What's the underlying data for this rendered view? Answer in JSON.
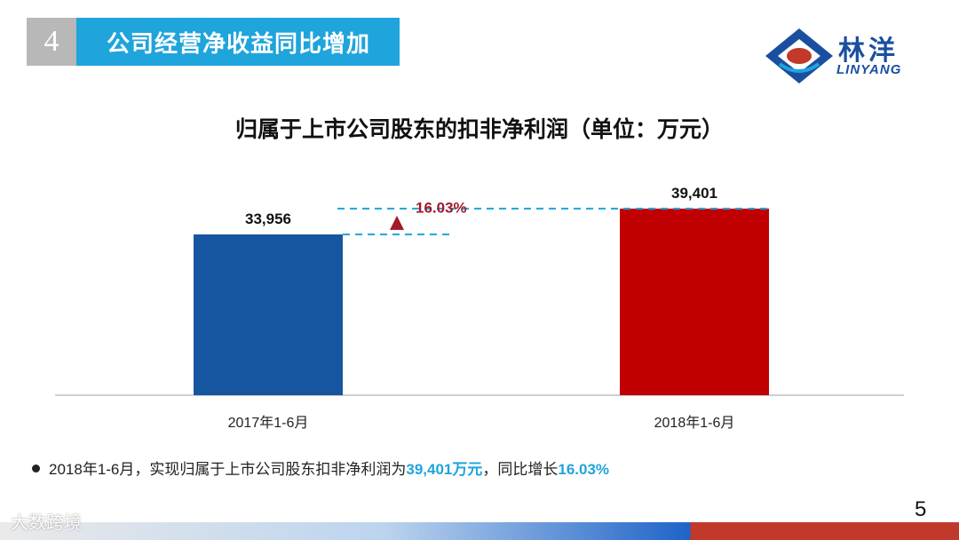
{
  "header": {
    "section_number": "4",
    "section_title": "公司经营净收益同比增加"
  },
  "logo": {
    "name_cn": "林洋",
    "name_en": "LINYANG",
    "colors": {
      "primary": "#1a4fa0",
      "accent": "#1fa4dc",
      "mark": "#c0392b"
    }
  },
  "chart_data": {
    "type": "bar",
    "title": "归属于上市公司股东的扣非净利润（单位：万元）",
    "categories": [
      "2017年1-6月",
      "2018年1-6月"
    ],
    "values": [
      33956,
      39401
    ],
    "value_labels": [
      "33,956",
      "39,401"
    ],
    "bar_colors": [
      "#1656a0",
      "#c00000"
    ],
    "growth_label": "16.03%",
    "growth_color": "#a31a2a",
    "guide_color": "#1fa4dc",
    "ylim": [
      0,
      45000
    ],
    "grid": false,
    "xlabel": "",
    "ylabel": ""
  },
  "summary": {
    "prefix": "2018年1-6月，实现归属于上市公司股东扣非净利润为",
    "amount": "39,401万元",
    "mid": "，同比增长",
    "growth": "16.03%"
  },
  "page_number": "5",
  "watermark": "大数跨境"
}
